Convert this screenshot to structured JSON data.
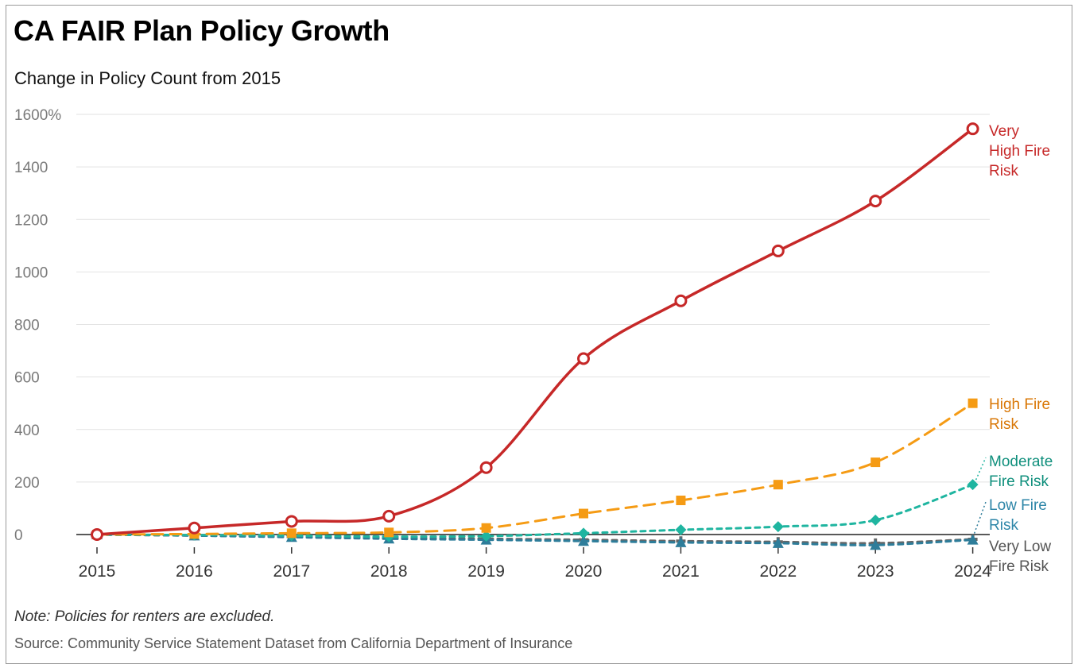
{
  "title": "CA FAIR Plan Policy Growth",
  "subtitle": "Change in Policy Count from 2015",
  "note": "Note: Policies for renters are excluded.",
  "source": "Source: Community Service Statement Dataset from California Department of Insurance",
  "chart_data": {
    "type": "line",
    "title": "CA FAIR Plan Policy Growth",
    "subtitle": "Change in Policy Count from 2015",
    "x": [
      2015,
      2016,
      2017,
      2018,
      2019,
      2020,
      2021,
      2022,
      2023,
      2024
    ],
    "xlabel": "",
    "ylabel": "",
    "ylim": [
      -60,
      1600
    ],
    "yticks": [
      0,
      200,
      400,
      600,
      800,
      1000,
      1200,
      1400,
      1600
    ],
    "ytick_labels": [
      "0",
      "200",
      "400",
      "600",
      "800",
      "1000",
      "1200",
      "1400",
      "1600%"
    ],
    "grid": "horizontal",
    "legend": "direct labels at right end of lines",
    "series": [
      {
        "name": "Very High Fire Risk",
        "label_lines": [
          "Very",
          "High Fire",
          "Risk"
        ],
        "values": [
          0,
          25,
          50,
          70,
          255,
          670,
          890,
          1080,
          1270,
          1545
        ],
        "color": "#c62828",
        "dash": "solid",
        "marker": "open-circle",
        "smooth": true
      },
      {
        "name": "High Fire Risk",
        "label_lines": [
          "High Fire",
          "Risk"
        ],
        "values": [
          0,
          2,
          5,
          8,
          25,
          80,
          130,
          190,
          275,
          500
        ],
        "color": "#f59b14",
        "label_color": "#d97706",
        "dash": "long",
        "marker": "square"
      },
      {
        "name": "Moderate Fire Risk",
        "label_lines": [
          "Moderate",
          "Fire Risk"
        ],
        "values": [
          0,
          -2,
          -4,
          -8,
          -6,
          5,
          18,
          30,
          55,
          190
        ],
        "color": "#1fb5a0",
        "label_color": "#0f8f7c",
        "dash": "short",
        "marker": "diamond"
      },
      {
        "name": "Low Fire Risk",
        "label_lines": [
          "Low Fire",
          "Risk"
        ],
        "values": [
          0,
          -4,
          -10,
          -16,
          -20,
          -25,
          -30,
          -33,
          -40,
          -20
        ],
        "color": "#2e7d9a",
        "label_color": "#2e86a8",
        "dash": "short",
        "marker": "triangle"
      },
      {
        "name": "Very Low Fire Risk",
        "label_lines": [
          "Very Low",
          "Fire Risk"
        ],
        "values": [
          0,
          -4,
          -8,
          -12,
          -16,
          -20,
          -25,
          -28,
          -33,
          -18
        ],
        "color": "#666666",
        "label_color": "#555555",
        "dash": "short",
        "marker": "cross"
      }
    ]
  }
}
